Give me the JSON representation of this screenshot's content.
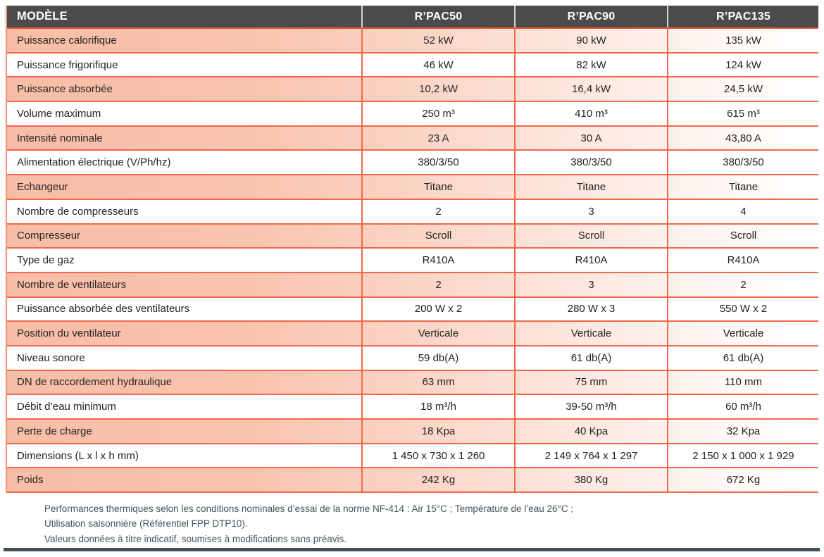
{
  "table": {
    "header": {
      "model_label": "MODÈLE",
      "models": [
        "R’PAC50",
        "R’PAC90",
        "R’PAC135"
      ]
    },
    "rows": [
      {
        "label": "Puissance calorifique",
        "values": [
          "52 kW",
          "90 kW",
          "135 kW"
        ]
      },
      {
        "label": "Puissance frigorifique",
        "values": [
          "46 kW",
          "82 kW",
          "124 kW"
        ]
      },
      {
        "label": "Puissance absorbée",
        "values": [
          "10,2 kW",
          "16,4 kW",
          "24,5 kW"
        ]
      },
      {
        "label": "Volume maximum",
        "values": [
          "250 m³",
          "410 m³",
          "615 m³"
        ]
      },
      {
        "label": "Intensité nominale",
        "values": [
          "23 A",
          "30 A",
          "43,80 A"
        ]
      },
      {
        "label": "Alimentation électrique (V/Ph/hz)",
        "values": [
          "380/3/50",
          "380/3/50",
          "380/3/50"
        ]
      },
      {
        "label": "Echangeur",
        "values": [
          "Titane",
          "Titane",
          "Titane"
        ]
      },
      {
        "label": "Nombre de compresseurs",
        "values": [
          "2",
          "3",
          "4"
        ]
      },
      {
        "label": "Compresseur",
        "values": [
          "Scroll",
          "Scroll",
          "Scroll"
        ]
      },
      {
        "label": "Type de gaz",
        "values": [
          "R410A",
          "R410A",
          "R410A"
        ]
      },
      {
        "label": "Nombre de ventilateurs",
        "values": [
          "2",
          "3",
          "2"
        ]
      },
      {
        "label": "Puissance absorbée des ventilateurs",
        "values": [
          "200 W x 2",
          "280 W x 3",
          "550 W x 2"
        ]
      },
      {
        "label": "Position du ventilateur",
        "values": [
          "Verticale",
          "Verticale",
          "Verticale"
        ]
      },
      {
        "label": "Niveau sonore",
        "values": [
          "59 db(A)",
          "61 db(A)",
          "61 db(A)"
        ]
      },
      {
        "label": "DN de raccordement hydraulique",
        "values": [
          "63 mm",
          "75 mm",
          "110 mm"
        ]
      },
      {
        "label": "Débit d’eau minimum",
        "values": [
          "18 m³/h",
          "39-50 m³/h",
          "60 m³/h"
        ]
      },
      {
        "label": "Perte de charge",
        "values": [
          "18 Kpa",
          "40 Kpa",
          "32 Kpa"
        ]
      },
      {
        "label": "Dimensions (L x l x h mm)",
        "values": [
          "1 450 x 730 x 1 260",
          "2 149 x 764 x 1 297",
          "2 150 x 1 000 x 1 929"
        ]
      },
      {
        "label": "Poids",
        "values": [
          "242 Kg",
          "380 Kg",
          "672 Kg"
        ]
      }
    ]
  },
  "footnote": {
    "lines": [
      "Performances thermiques selon les conditions nominales d’essai de la norme NF-414 : Air 15°C ; Température de l’eau 26°C ;",
      "Utilisation saisonnière (Référentiel FPP DTP10).",
      "Valeurs données à titre indicatif, soumises à modifications sans préavis."
    ]
  },
  "colors": {
    "header_background": "#4B4B4D",
    "row_tint_salmon": "#F8BDA6",
    "border_orange": "#F3674A",
    "footnote_slate": "#44545A"
  }
}
